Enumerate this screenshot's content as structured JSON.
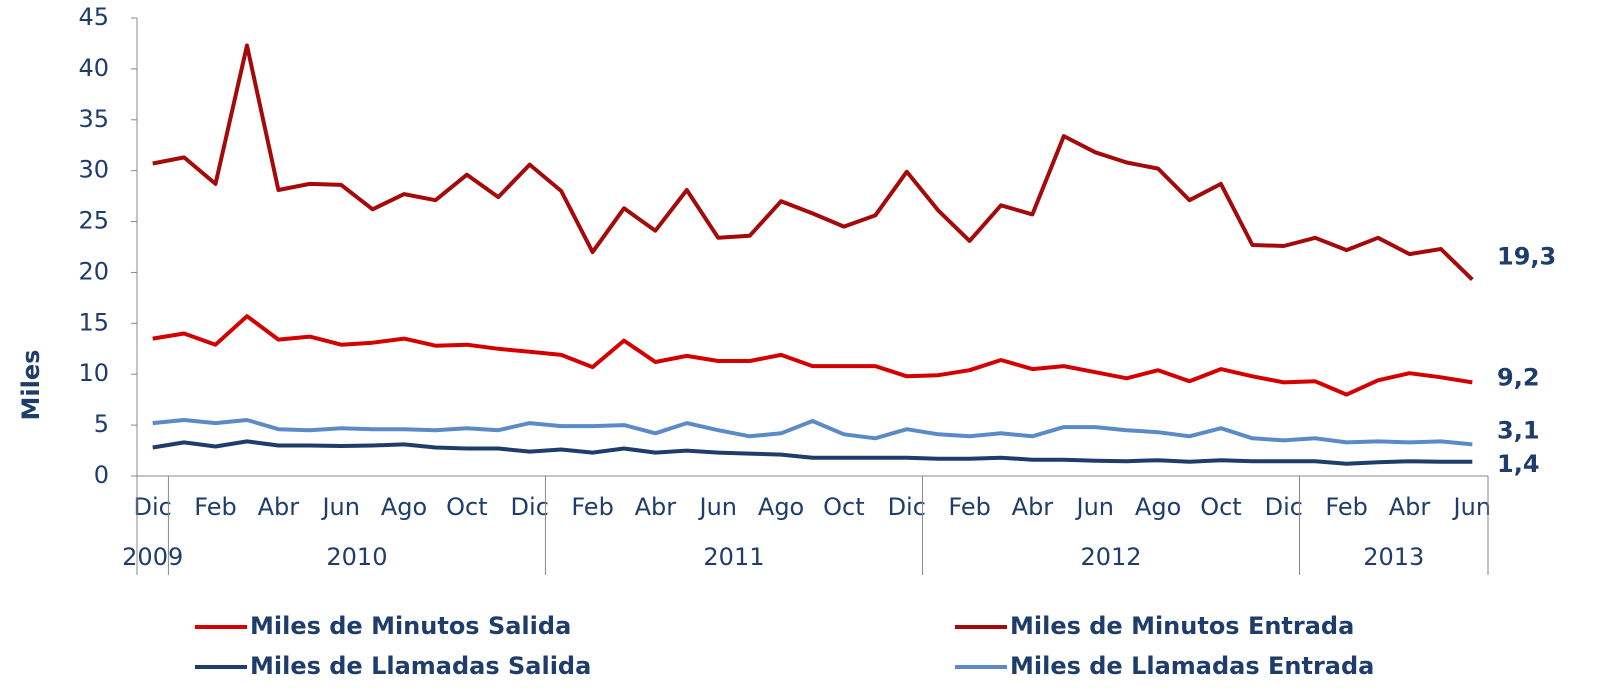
{
  "chart_data": {
    "type": "line",
    "y_label": "Miles",
    "categories": [
      "Dic",
      null,
      "Feb",
      null,
      "Abr",
      null,
      "Jun",
      null,
      "Ago",
      null,
      "Oct",
      null,
      "Dic",
      null,
      "Feb",
      null,
      "Abr",
      null,
      "Jun",
      null,
      "Ago",
      null,
      "Oct",
      null,
      "Dic",
      null,
      "Feb",
      null,
      "Abr",
      null,
      "Jun",
      null,
      "Ago",
      null,
      "Oct",
      null,
      "Dic",
      null,
      "Feb",
      null,
      "Abr",
      null,
      "Jun"
    ],
    "x_groups": [
      {
        "label": "2009",
        "size": 1
      },
      {
        "label": "2010",
        "size": 12
      },
      {
        "label": "2011",
        "size": 12
      },
      {
        "label": "2012",
        "size": 12
      },
      {
        "label": "2013",
        "size": 6
      }
    ],
    "ylim": [
      0,
      45
    ],
    "yticks": [
      0,
      5,
      10,
      15,
      20,
      25,
      30,
      35,
      40,
      45
    ],
    "grid": false,
    "series": [
      {
        "name": "Miles de Minutos Salida",
        "color": "#d40000",
        "values": [
          13.5,
          14.0,
          12.9,
          15.7,
          13.4,
          13.7,
          12.9,
          13.1,
          13.5,
          12.8,
          12.9,
          12.5,
          12.2,
          11.9,
          10.7,
          13.3,
          11.2,
          11.8,
          11.3,
          11.3,
          11.9,
          10.8,
          10.8,
          10.8,
          9.8,
          9.9,
          10.4,
          11.4,
          10.5,
          10.8,
          10.2,
          9.6,
          10.4,
          9.3,
          10.5,
          9.8,
          9.2,
          9.3,
          8.0,
          9.4,
          10.1,
          9.7,
          9.2
        ],
        "value_labels": [
          null,
          null,
          null,
          null,
          null,
          null,
          null,
          null,
          null,
          null,
          null,
          null,
          null,
          null,
          null,
          null,
          null,
          null,
          null,
          null,
          null,
          null,
          null,
          null,
          null,
          null,
          null,
          null,
          null,
          null,
          null,
          null,
          null,
          null,
          null,
          null,
          null,
          null,
          null,
          null,
          null,
          null,
          "9,2"
        ]
      },
      {
        "name": "Miles de Minutos Entrada",
        "color": "#a50a0a",
        "values": [
          30.7,
          31.3,
          28.7,
          42.3,
          28.1,
          28.7,
          28.6,
          26.2,
          27.7,
          27.1,
          29.6,
          27.4,
          30.6,
          28.0,
          22.0,
          26.3,
          24.1,
          28.1,
          23.4,
          23.6,
          27.0,
          25.8,
          24.5,
          25.6,
          29.9,
          26.1,
          23.1,
          26.6,
          25.7,
          33.4,
          31.8,
          30.8,
          30.2,
          27.1,
          28.7,
          22.7,
          22.6,
          23.4,
          22.2,
          23.4,
          21.8,
          22.3,
          19.3
        ],
        "value_labels": [
          null,
          null,
          null,
          null,
          null,
          null,
          null,
          null,
          null,
          null,
          null,
          null,
          null,
          null,
          null,
          null,
          null,
          null,
          null,
          null,
          null,
          null,
          null,
          null,
          null,
          null,
          null,
          null,
          null,
          null,
          null,
          null,
          null,
          null,
          null,
          null,
          null,
          null,
          null,
          null,
          null,
          null,
          "19,3"
        ]
      },
      {
        "name": "Miles de Llamadas Salida",
        "color": "#1f3d6b",
        "values": [
          2.8,
          3.3,
          2.9,
          3.4,
          3.0,
          3.0,
          2.95,
          3.0,
          3.1,
          2.8,
          2.7,
          2.7,
          2.4,
          2.6,
          2.3,
          2.7,
          2.3,
          2.5,
          2.3,
          2.2,
          2.1,
          1.8,
          1.8,
          1.8,
          1.8,
          1.7,
          1.7,
          1.8,
          1.6,
          1.6,
          1.5,
          1.45,
          1.55,
          1.4,
          1.55,
          1.45,
          1.45,
          1.45,
          1.2,
          1.35,
          1.45,
          1.4,
          1.4
        ],
        "value_labels": [
          null,
          null,
          null,
          null,
          null,
          null,
          null,
          null,
          null,
          null,
          null,
          null,
          null,
          null,
          null,
          null,
          null,
          null,
          null,
          null,
          null,
          null,
          null,
          null,
          null,
          null,
          null,
          null,
          null,
          null,
          null,
          null,
          null,
          null,
          null,
          null,
          null,
          null,
          null,
          null,
          null,
          null,
          "1,4"
        ]
      },
      {
        "name": "Miles de Llamadas Entrada",
        "color": "#5b8ac6",
        "values": [
          5.2,
          5.5,
          5.2,
          5.5,
          4.6,
          4.5,
          4.7,
          4.6,
          4.6,
          4.5,
          4.7,
          4.5,
          5.2,
          4.9,
          4.9,
          5.0,
          4.2,
          5.2,
          4.5,
          3.9,
          4.2,
          5.4,
          4.1,
          3.7,
          4.6,
          4.1,
          3.9,
          4.2,
          3.9,
          4.8,
          4.8,
          4.5,
          4.3,
          3.9,
          4.7,
          3.7,
          3.5,
          3.7,
          3.3,
          3.4,
          3.3,
          3.4,
          3.1
        ],
        "value_labels": [
          null,
          null,
          null,
          null,
          null,
          null,
          null,
          null,
          null,
          null,
          null,
          null,
          null,
          null,
          null,
          null,
          null,
          null,
          null,
          null,
          null,
          null,
          null,
          null,
          null,
          null,
          null,
          null,
          null,
          null,
          null,
          null,
          null,
          null,
          null,
          null,
          null,
          null,
          null,
          null,
          null,
          null,
          "3,1"
        ]
      }
    ]
  }
}
